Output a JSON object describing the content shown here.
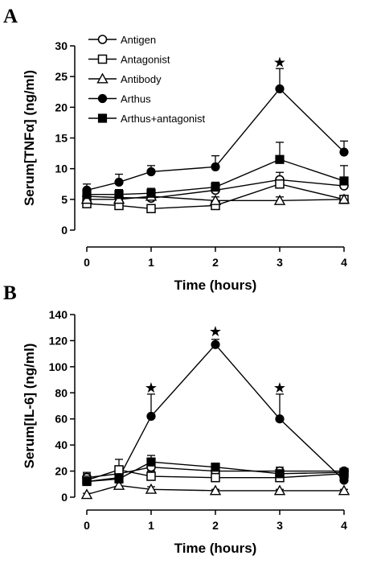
{
  "figure": {
    "panel_a_letter": "A",
    "panel_b_letter": "B"
  },
  "chart_data": [
    {
      "type": "line",
      "panel": "A",
      "ylabel": "Serum[TNFα] (ng/ml)",
      "xlabel": "Time (hours)",
      "xlim": [
        0,
        4
      ],
      "ylim": [
        0,
        30
      ],
      "xticks": [
        0,
        1,
        2,
        3,
        4
      ],
      "yticks": [
        0,
        5,
        10,
        15,
        20,
        25,
        30
      ],
      "grid": false,
      "legend_position": "upper-left",
      "x": [
        0,
        0.5,
        1,
        2,
        3,
        4
      ],
      "series": [
        {
          "name": "Antigen",
          "marker": "open-circle",
          "values": [
            5.5,
            5.3,
            5.2,
            6.5,
            8.2,
            7.2
          ],
          "error": [
            0.8,
            0.7,
            0.8,
            0.8,
            1.2,
            1.0
          ]
        },
        {
          "name": "Antagonist",
          "marker": "open-square",
          "values": [
            4.3,
            4.0,
            3.5,
            4.0,
            7.5,
            5.0
          ],
          "error": [
            0.8,
            0.6,
            0.6,
            0.7,
            1.0,
            0.6
          ]
        },
        {
          "name": "Antibody",
          "marker": "open-triangle",
          "values": [
            5.0,
            5.0,
            5.5,
            4.8,
            4.8,
            5.0
          ],
          "error": [
            0.6,
            0.5,
            0.6,
            0.6,
            0.6,
            0.5
          ]
        },
        {
          "name": "Arthus",
          "marker": "filled-circle",
          "values": [
            6.5,
            7.8,
            9.5,
            10.3,
            23.0,
            12.7
          ],
          "error": [
            1.0,
            1.3,
            1.0,
            1.8,
            3.3,
            1.8
          ]
        },
        {
          "name": "Arthus+antagonist",
          "marker": "filled-square",
          "values": [
            5.8,
            5.8,
            6.0,
            7.0,
            11.5,
            8.0
          ],
          "error": [
            0.8,
            0.8,
            0.8,
            0.8,
            2.8,
            2.5
          ]
        }
      ],
      "annotations": [
        {
          "text": "★",
          "x": 3,
          "y": 27.3
        }
      ]
    },
    {
      "type": "line",
      "panel": "B",
      "ylabel": "Serum[IL-6] (ng/ml)",
      "xlabel": "Time (hours)",
      "xlim": [
        0,
        4
      ],
      "ylim": [
        0,
        140
      ],
      "xticks": [
        0,
        1,
        2,
        3,
        4
      ],
      "yticks": [
        0,
        20,
        40,
        60,
        80,
        100,
        120,
        140
      ],
      "grid": false,
      "x": [
        0,
        0.5,
        1,
        2,
        3,
        4
      ],
      "series": [
        {
          "name": "Antigen",
          "marker": "open-circle",
          "values": [
            15,
            18,
            23,
            20,
            20,
            20
          ],
          "error": [
            4,
            4,
            5,
            3,
            3,
            2
          ]
        },
        {
          "name": "Antagonist",
          "marker": "open-square",
          "values": [
            13,
            21,
            16,
            15,
            15,
            18
          ],
          "error": [
            5,
            8,
            4,
            3,
            3,
            3
          ]
        },
        {
          "name": "Antibody",
          "marker": "open-triangle",
          "values": [
            2,
            9,
            6,
            5,
            5,
            5
          ],
          "error": [
            1,
            2,
            2,
            1,
            1,
            1
          ]
        },
        {
          "name": "Arthus",
          "marker": "filled-circle",
          "values": [
            12,
            15,
            62,
            117,
            60,
            13
          ],
          "error": [
            4,
            4,
            17,
            4,
            19,
            2
          ]
        },
        {
          "name": "Arthus+antagonist",
          "marker": "filled-square",
          "values": [
            12,
            14,
            27,
            23,
            18,
            19
          ],
          "error": [
            5,
            4,
            5,
            3,
            3,
            2
          ]
        }
      ],
      "annotations": [
        {
          "text": "★",
          "x": 1,
          "y": 84
        },
        {
          "text": "★",
          "x": 2,
          "y": 127
        },
        {
          "text": "★",
          "x": 3,
          "y": 84
        }
      ]
    }
  ]
}
